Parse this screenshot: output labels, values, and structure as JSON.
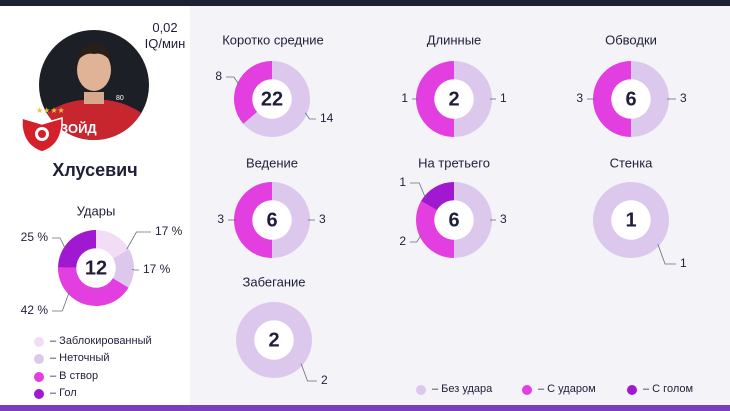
{
  "player": {
    "rate_value": "0,02",
    "rate_unit": "IQ/мин",
    "name": "Хлусевич",
    "stars": "★★★★",
    "club_logo": "spartak-logo",
    "shirt_text": "ЗОЙД",
    "shirt_number": "80"
  },
  "colors": {
    "no_shot": "#dcc8ec",
    "with_shot": "#e23ee0",
    "with_goal": "#a018d0",
    "blocked": "#f3dcf6",
    "inaccurate": "#dcc8ec",
    "on_target": "#e23ee0",
    "goal": "#a018d0"
  },
  "shots_legend": [
    "– Заблокированный",
    "– Неточный",
    "– В створ",
    "– Гол"
  ],
  "actions_legend": [
    "– Без удара",
    "– С ударом",
    "– С голом"
  ],
  "chart_data": [
    {
      "type": "pie",
      "title": "Удары",
      "total": "12",
      "categories": [
        "Заблокированный",
        "Неточный",
        "В створ",
        "Гол"
      ],
      "values": [
        17,
        17,
        42,
        25
      ],
      "labels": [
        "17 %",
        "17 %",
        "42 %",
        "25 %"
      ]
    },
    {
      "type": "pie",
      "title": "Коротко средние",
      "total": "22",
      "categories": [
        "Без удара",
        "С ударом",
        "С голом"
      ],
      "values": [
        14,
        8,
        0
      ]
    },
    {
      "type": "pie",
      "title": "Длинные",
      "total": "2",
      "categories": [
        "Без удара",
        "С ударом",
        "С голом"
      ],
      "values": [
        1,
        1,
        0
      ]
    },
    {
      "type": "pie",
      "title": "Обводки",
      "total": "6",
      "categories": [
        "Без удара",
        "С ударом",
        "С голом"
      ],
      "values": [
        3,
        3,
        0
      ]
    },
    {
      "type": "pie",
      "title": "Ведение",
      "total": "6",
      "categories": [
        "Без удара",
        "С ударом",
        "С голом"
      ],
      "values": [
        3,
        3,
        0
      ]
    },
    {
      "type": "pie",
      "title": "На третьего",
      "total": "6",
      "categories": [
        "Без удара",
        "С ударом",
        "С голом"
      ],
      "values": [
        3,
        2,
        1
      ]
    },
    {
      "type": "pie",
      "title": "Стенка",
      "total": "1",
      "categories": [
        "Без удара",
        "С ударом",
        "С голом"
      ],
      "values": [
        1,
        0,
        0
      ]
    },
    {
      "type": "pie",
      "title": "Забегание",
      "total": "2",
      "categories": [
        "Без удара",
        "С ударом",
        "С голом"
      ],
      "values": [
        2,
        0,
        0
      ]
    }
  ]
}
